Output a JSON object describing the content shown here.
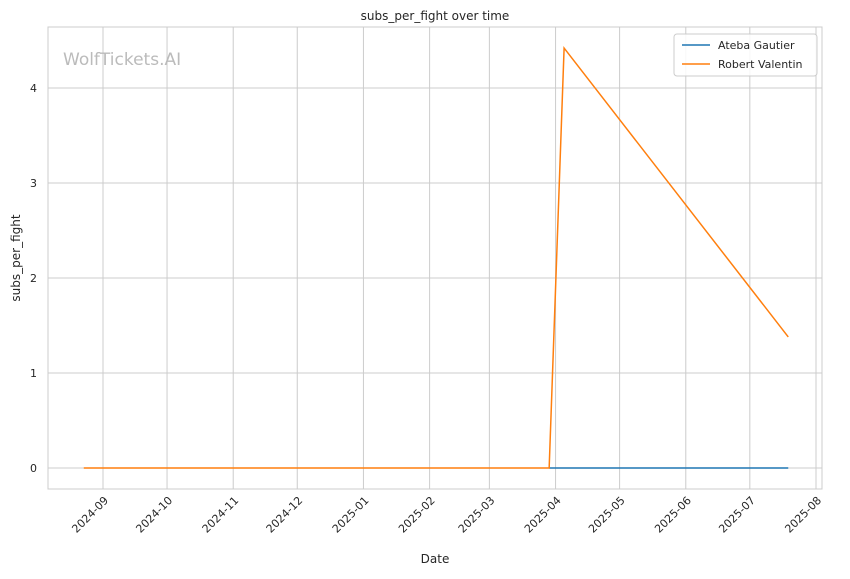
{
  "chart_data": {
    "type": "line",
    "title": "subs_per_fight over time",
    "xlabel": "Date",
    "ylabel": "subs_per_fight",
    "watermark": "WolfTickets.AI",
    "x_ticks": [
      "2024-09",
      "2024-10",
      "2024-11",
      "2024-12",
      "2025-01",
      "2025-02",
      "2025-03",
      "2025-04",
      "2025-05",
      "2025-06",
      "2025-07",
      "2025-08"
    ],
    "y_ticks": [
      0,
      1,
      2,
      3,
      4
    ],
    "xlim": [
      "2024-08-14",
      "2025-08-04"
    ],
    "ylim": [
      -0.22,
      4.64
    ],
    "grid": true,
    "legend_position": "top-right",
    "series": [
      {
        "name": "Ateba Gautier",
        "color": "#1f77b4",
        "points": [
          {
            "x": "2025-03-29",
            "y": 0
          },
          {
            "x": "2025-07-19",
            "y": 0
          }
        ]
      },
      {
        "name": "Robert Valentin",
        "color": "#ff7f0e",
        "points": [
          {
            "x": "2024-08-23",
            "y": 0
          },
          {
            "x": "2025-03-29",
            "y": 0
          },
          {
            "x": "2025-04-05",
            "y": 4.42
          },
          {
            "x": "2025-07-19",
            "y": 1.38
          }
        ]
      }
    ]
  }
}
